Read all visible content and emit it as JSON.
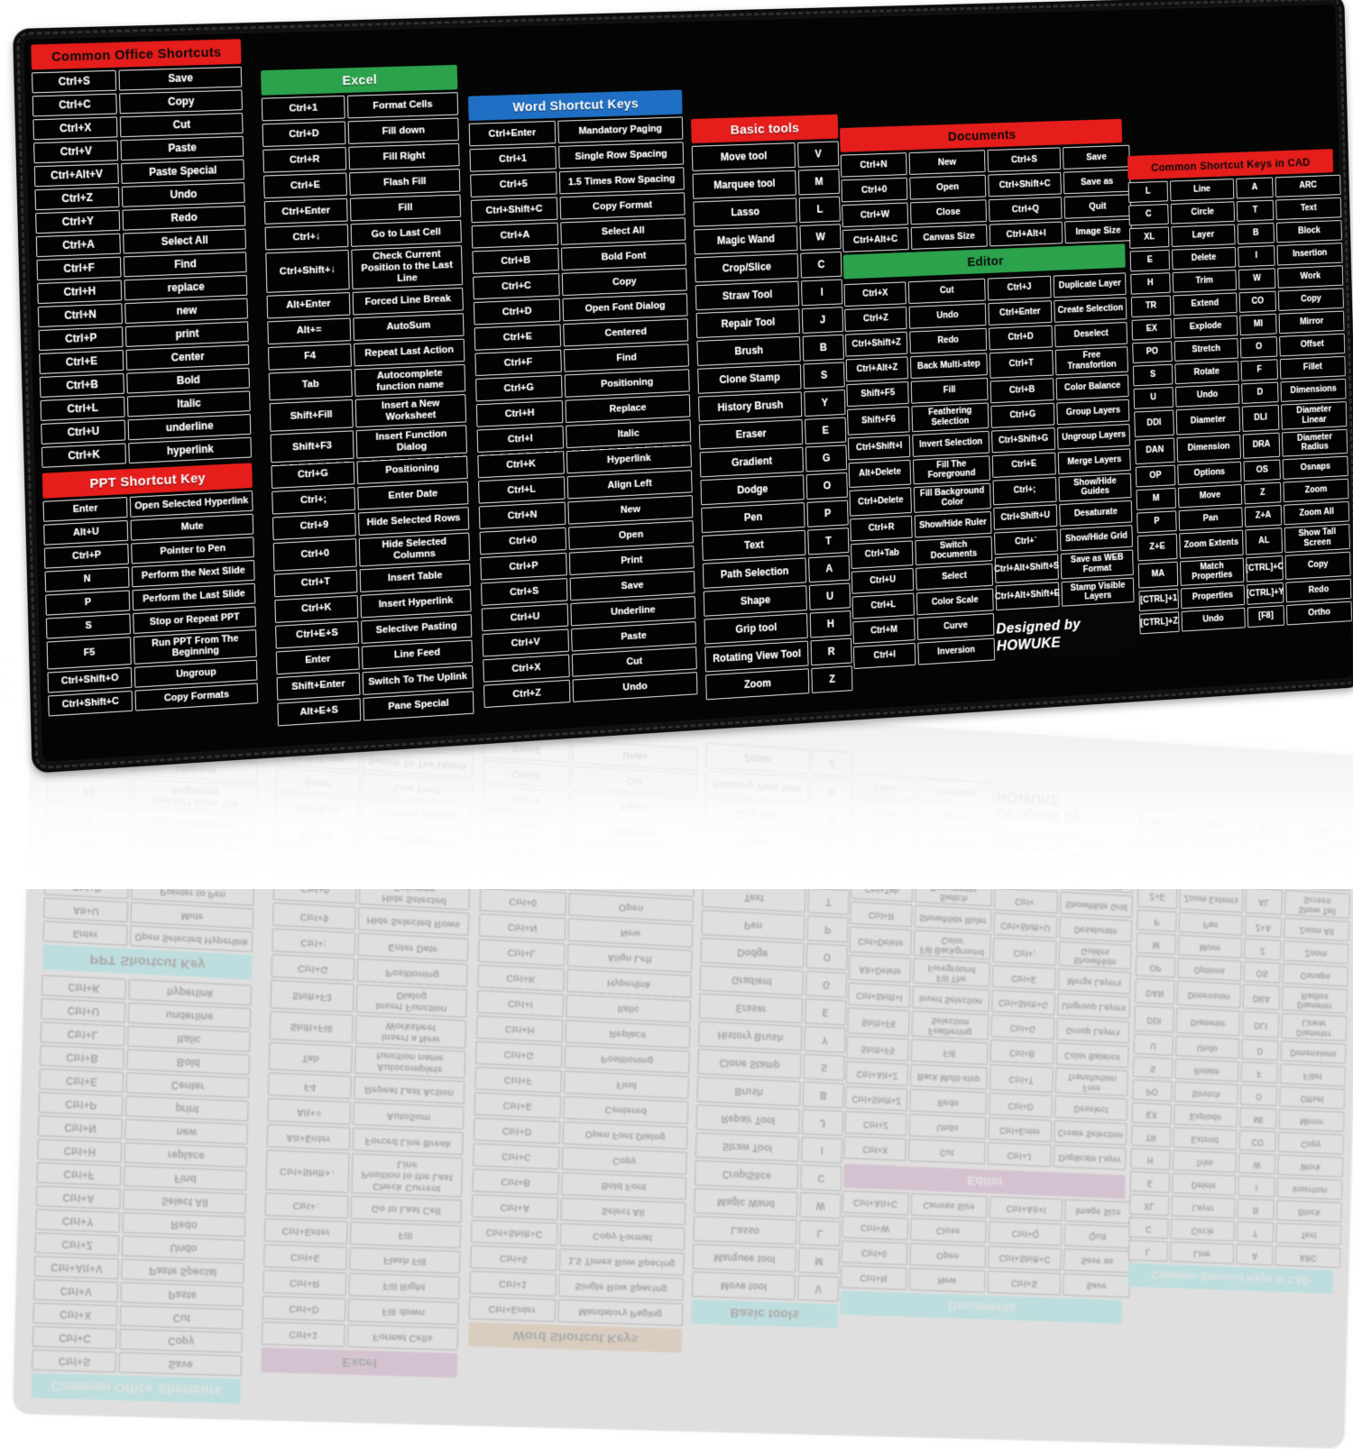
{
  "brand": {
    "label": "Designed by HOWUKE"
  },
  "colors": {
    "header_red": "#e51d1b",
    "header_green": "#2ba24b",
    "header_blue": "#1f6fc4",
    "pad_black": "#050505",
    "cell_border": "#efefef"
  },
  "sections": {
    "office": {
      "title": "Common Office Shortcuts",
      "rows": [
        [
          "Ctrl+S",
          "Save"
        ],
        [
          "Ctrl+C",
          "Copy"
        ],
        [
          "Ctrl+X",
          "Cut"
        ],
        [
          "Ctrl+V",
          "Paste"
        ],
        [
          "Ctrl+Alt+V",
          "Paste Special"
        ],
        [
          "Ctrl+Z",
          "Undo"
        ],
        [
          "Ctrl+Y",
          "Redo"
        ],
        [
          "Ctrl+A",
          "Select All"
        ],
        [
          "Ctrl+F",
          "Find"
        ],
        [
          "Ctrl+H",
          "replace"
        ],
        [
          "Ctrl+N",
          "new"
        ],
        [
          "Ctrl+P",
          "print"
        ],
        [
          "Ctrl+E",
          "Center"
        ],
        [
          "Ctrl+B",
          "Bold"
        ],
        [
          "Ctrl+L",
          "Italic"
        ],
        [
          "Ctrl+U",
          "underline"
        ],
        [
          "Ctrl+K",
          "hyperlink"
        ]
      ]
    },
    "ppt": {
      "title": "PPT Shortcut Key",
      "rows": [
        [
          "Enter",
          "Open Selected Hyperlink"
        ],
        [
          "Alt+U",
          "Mute"
        ],
        [
          "Ctrl+P",
          "Pointer to Pen"
        ],
        [
          "N",
          "Perform the Next Slide"
        ],
        [
          "P",
          "Perform the Last Slide"
        ],
        [
          "S",
          "Stop or Repeat PPT"
        ],
        [
          "F5",
          "Run PPT From The Beginning"
        ],
        [
          "Ctrl+Shift+O",
          "Ungroup"
        ],
        [
          "Ctrl+Shift+C",
          "Copy Formats"
        ]
      ]
    },
    "excel": {
      "title": "Excel",
      "rows": [
        [
          "Ctrl+1",
          "Format Cells"
        ],
        [
          "Ctrl+D",
          "Fill down"
        ],
        [
          "Ctrl+R",
          "Fill Right"
        ],
        [
          "Ctrl+E",
          "Flash Fill"
        ],
        [
          "Ctrl+Enter",
          "Fill"
        ],
        [
          "Ctrl+↓",
          "Go to Last Cell"
        ],
        [
          "Ctrl+Shift+↓",
          "Check Current Position to the Last Line"
        ],
        [
          "Alt+Enter",
          "Forced Line Break"
        ],
        [
          "Alt+=",
          "AutoSum"
        ],
        [
          "F4",
          "Repeat Last Action"
        ],
        [
          "Tab",
          "Autocomplete function name"
        ],
        [
          "Shift+Fill",
          "Insert a New Worksheet"
        ],
        [
          "Shift+F3",
          "Insert Function Dialog"
        ],
        [
          "Ctrl+G",
          "Positioning"
        ],
        [
          "Ctrl+;",
          "Enter Date"
        ],
        [
          "Ctrl+9",
          "Hide Selected Rows"
        ],
        [
          "Ctrl+0",
          "Hide Selected Columns"
        ],
        [
          "Ctrl+T",
          "Insert Table"
        ],
        [
          "Ctrl+K",
          "Insert Hyperlink"
        ],
        [
          "Ctrl+E+S",
          "Selective Pasting"
        ],
        [
          "Enter",
          "Line Feed"
        ],
        [
          "Shift+Enter",
          "Switch To The Uplink"
        ],
        [
          "Alt+E+S",
          "Pane Special"
        ]
      ]
    },
    "word": {
      "title": "Word Shortcut Keys",
      "rows": [
        [
          "Ctrl+Enter",
          "Mandatory Paging"
        ],
        [
          "Ctrl+1",
          "Single Row Spacing"
        ],
        [
          "Ctrl+5",
          "1.5 Times Row Spacing"
        ],
        [
          "Ctrl+Shift+C",
          "Copy Format"
        ],
        [
          "Ctrl+A",
          "Select All"
        ],
        [
          "Ctrl+B",
          "Bold Font"
        ],
        [
          "Ctrl+C",
          "Copy"
        ],
        [
          "Ctrl+D",
          "Open Font Dialog"
        ],
        [
          "Ctrl+E",
          "Centered"
        ],
        [
          "Ctrl+F",
          "Find"
        ],
        [
          "Ctrl+G",
          "Positioning"
        ],
        [
          "Ctrl+H",
          "Replace"
        ],
        [
          "Ctrl+I",
          "Italic"
        ],
        [
          "Ctrl+K",
          "Hyperlink"
        ],
        [
          "Ctrl+L",
          "Align Left"
        ],
        [
          "Ctrl+N",
          "New"
        ],
        [
          "Ctrl+0",
          "Open"
        ],
        [
          "Ctrl+P",
          "Print"
        ],
        [
          "Ctrl+S",
          "Save"
        ],
        [
          "Ctrl+U",
          "Underline"
        ],
        [
          "Ctrl+V",
          "Paste"
        ],
        [
          "Ctrl+X",
          "Cut"
        ],
        [
          "Ctrl+Z",
          "Undo"
        ]
      ]
    },
    "basic": {
      "title": "Basic tools",
      "rows": [
        [
          "Move tool",
          "V"
        ],
        [
          "Marquee tool",
          "M"
        ],
        [
          "Lasso",
          "L"
        ],
        [
          "Magic Wand",
          "W"
        ],
        [
          "Crop/Slice",
          "C"
        ],
        [
          "Straw Tool",
          "I"
        ],
        [
          "Repair Tool",
          "J"
        ],
        [
          "Brush",
          "B"
        ],
        [
          "Clone Stamp",
          "S"
        ],
        [
          "History Brush",
          "Y"
        ],
        [
          "Eraser",
          "E"
        ],
        [
          "Gradient",
          "G"
        ],
        [
          "Dodge",
          "O"
        ],
        [
          "Pen",
          "P"
        ],
        [
          "Text",
          "T"
        ],
        [
          "Path Selection",
          "A"
        ],
        [
          "Shape",
          "U"
        ],
        [
          "Grip tool",
          "H"
        ],
        [
          "Rotating View Tool",
          "R"
        ],
        [
          "Zoom",
          "Z"
        ]
      ]
    },
    "documents": {
      "title": "Documents",
      "rows": [
        [
          "Ctrl+N",
          "New",
          "Ctrl+S",
          "Save"
        ],
        [
          "Ctrl+0",
          "Open",
          "Ctrl+Shift+C",
          "Save as"
        ],
        [
          "Ctrl+W",
          "Close",
          "Ctrl+Q",
          "Quit"
        ],
        [
          "Ctrl+Alt+C",
          "Canvas Size",
          "Ctrl+Alt+I",
          "Image Size"
        ]
      ]
    },
    "editor": {
      "title": "Editor",
      "left_rows": [
        [
          "Ctrl+X",
          "Cut"
        ],
        [
          "Ctrl+Z",
          "Undo"
        ],
        [
          "Ctrl+Shift+Z",
          "Redo"
        ],
        [
          "Ctrl+Alt+Z",
          "Back Multi-step"
        ],
        [
          "Shift+F5",
          "Fill"
        ],
        [
          "Shift+F6",
          "Feathering Selection"
        ],
        [
          "Ctrl+Shift+I",
          "Invert Selection"
        ],
        [
          "Alt+Delete",
          "Fill The Foreground"
        ],
        [
          "Ctrl+Delete",
          "Fill Background Color"
        ],
        [
          "Ctrl+R",
          "Show/Hide Ruler"
        ],
        [
          "Ctrl+Tab",
          "Switch Documents"
        ],
        [
          "Ctrl+U",
          "Select"
        ],
        [
          "Ctrl+L",
          "Color Scale"
        ],
        [
          "Ctrl+M",
          "Curve"
        ],
        [
          "Ctrl+I",
          "Inversion"
        ]
      ],
      "right_rows": [
        [
          "Ctrl+J",
          "Duplicate Layer"
        ],
        [
          "Ctrl+Enter",
          "Create Selection"
        ],
        [
          "Ctrl+D",
          "Deselect"
        ],
        [
          "Ctrl+T",
          "Free Transfortion"
        ],
        [
          "Ctrl+B",
          "Color Balance"
        ],
        [
          "Ctrl+G",
          "Group Layers"
        ],
        [
          "Ctrl+Shift+G",
          "Ungroup Layers"
        ],
        [
          "Ctrl+E",
          "Merge Layers"
        ],
        [
          "Ctrl+;",
          "Show/Hide Guides"
        ],
        [
          "Ctrl+Shift+U",
          "Desaturate"
        ],
        [
          "Ctrl+`",
          "Show/Hide Grid"
        ],
        [
          "Ctrl+Alt+Shift+S",
          "Save as WEB Format"
        ],
        [
          "Ctrl+Alt+Shift+E",
          "Stamp Visible Layers"
        ]
      ]
    },
    "cad": {
      "title": "Common Shortcut Keys in CAD",
      "rows": [
        [
          "L",
          "Line",
          "A",
          "ARC"
        ],
        [
          "C",
          "Circle",
          "T",
          "Text"
        ],
        [
          "XL",
          "Layer",
          "B",
          "Block"
        ],
        [
          "E",
          "Delete",
          "I",
          "Insertion"
        ],
        [
          "H",
          "Trim",
          "W",
          "Work"
        ],
        [
          "TR",
          "Extend",
          "CO",
          "Copy"
        ],
        [
          "EX",
          "Explode",
          "MI",
          "Mirror"
        ],
        [
          "PO",
          "Stretch",
          "O",
          "Offset"
        ],
        [
          "S",
          "Rotate",
          "F",
          "Fillet"
        ],
        [
          "U",
          "Undo",
          "D",
          "Dimensions"
        ],
        [
          "DDI",
          "Diameter",
          "DLI",
          "Diameter Linear"
        ],
        [
          "DAN",
          "Dimension",
          "DRA",
          "Diameter Radius"
        ],
        [
          "OP",
          "Options",
          "OS",
          "Osnaps"
        ],
        [
          "M",
          "Move",
          "Z",
          "Zoom"
        ],
        [
          "P",
          "Pan",
          "Z+A",
          "Zoom All"
        ],
        [
          "Z+E",
          "Zoom Extents",
          "AL",
          "Show Tall Screen"
        ],
        [
          "MA",
          "Match Properties",
          "[CTRL]+C",
          "Copy"
        ],
        [
          "[CTRL]+1",
          "Properties",
          "[CTRL]+Y",
          "Redo"
        ],
        [
          "[CTRL]+Z",
          "Undo",
          "[F8]",
          "Ortho"
        ]
      ]
    }
  }
}
